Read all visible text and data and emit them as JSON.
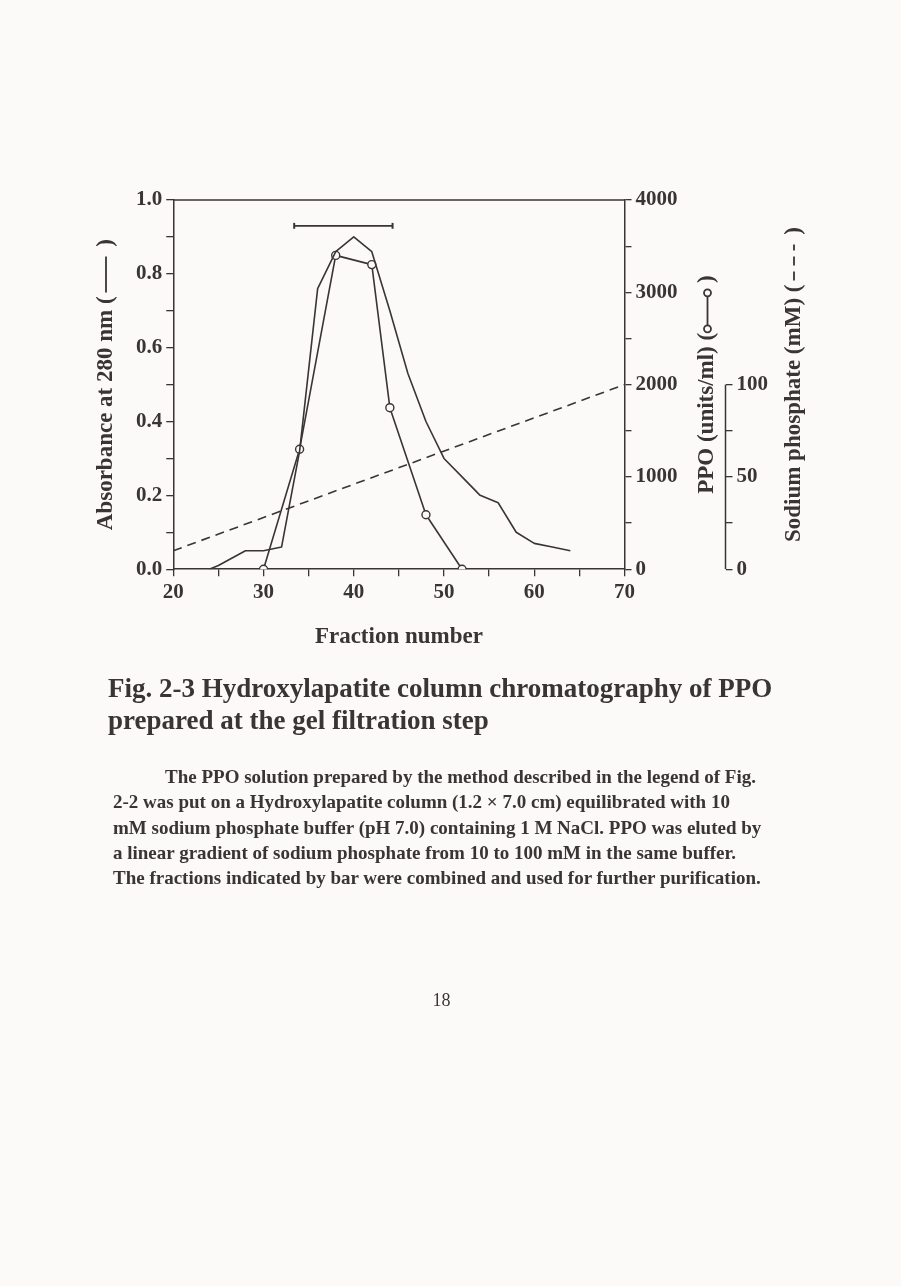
{
  "chart_data": {
    "type": "line",
    "title": "Fig. 2-3 Hydroxylapatite column chromatography of PPO prepared at the gel filtration step",
    "xlabel": "Fraction number",
    "ylabel": "Absorbance at 280 nm ( )",
    "y2label": "PPO (units/ml) ( )",
    "y3label": "Sodium phosphate (mM) ( )",
    "xlim": [
      20,
      70
    ],
    "xticks": [
      20,
      {
        "value": 25,
        "label": null
      },
      30,
      {
        "value": 35,
        "label": null
      },
      40,
      {
        "value": 45,
        "label": null
      },
      50,
      {
        "value": 55,
        "label": null
      },
      60,
      {
        "value": 65,
        "label": null
      },
      70
    ],
    "ylim": [
      0,
      1.0
    ],
    "yticks": [
      {
        "value": 0,
        "label": "0.0"
      },
      {
        "value": 0.1,
        "label": null
      },
      0.2,
      {
        "value": 0.3,
        "label": null
      },
      0.4,
      {
        "value": 0.5,
        "label": null
      },
      0.6,
      {
        "value": 0.7,
        "label": null
      },
      0.8,
      {
        "value": 0.9,
        "label": null
      },
      {
        "value": 1,
        "label": "1.0"
      }
    ],
    "y2lim": [
      0,
      4000
    ],
    "y2ticks": [
      0,
      {
        "value": 500,
        "label": null
      },
      1000,
      {
        "value": 1500,
        "label": null
      },
      2000,
      {
        "value": 2500,
        "label": null
      },
      3000,
      {
        "value": 3500,
        "label": null
      },
      4000
    ],
    "y3lim": [
      0,
      100
    ],
    "y3ticks": [
      0,
      {
        "value": 25,
        "label": null
      },
      50,
      {
        "value": 75,
        "label": null
      },
      100
    ],
    "legend": false,
    "series": [
      {
        "color": "#3a3535",
        "marker": "none",
        "line_style": "solid",
        "x": [
          24,
          25,
          28,
          30,
          32,
          34,
          36,
          38,
          40,
          42,
          44,
          46,
          48,
          50,
          52,
          54,
          56,
          58,
          60,
          62,
          64
        ],
        "values": [
          0,
          0.01,
          0.05,
          0.05,
          0.06,
          0.32,
          0.76,
          0.86,
          0.9,
          0.86,
          0.7,
          0.53,
          0.4,
          0.3,
          0.25,
          0.2,
          0.18,
          0.1,
          0.07,
          0.06,
          0.05
        ]
      },
      {
        "color": "#3a3535",
        "marker": "circle",
        "line_style": "solid",
        "axis": "y2",
        "x": [
          30,
          34,
          38,
          42,
          44,
          48,
          52
        ],
        "values": [
          0,
          1300,
          3400,
          3300,
          1750,
          590,
          0
        ]
      },
      {
        "color": "#3a3535",
        "marker": "none",
        "line_style": "dashed",
        "axis": "y3",
        "x": [
          20,
          70
        ],
        "values": [
          10,
          100
        ]
      },
      {
        "color": "#3a3535",
        "marker": "none",
        "line_style": "solid",
        "x": [
          33.4,
          44.3
        ],
        "values": [
          0.93,
          0.93
        ],
        "errors": [
          0.008,
          0.008
        ]
      }
    ],
    "annotations": [
      "The PPO solution prepared by the method described in the legend of Fig. 2-2 was put on a Hydroxylapatite column (1.2 × 7.0 cm) equilibrated with 10 mM sodium phosphate buffer (pH 7.0) containing 1 M NaCl. PPO was eluted by a linear gradient of sodium phosphate from 10 to 100 mM in the same buffer. The fractions indicated by bar were combined and used for further purification.",
      "18"
    ]
  }
}
